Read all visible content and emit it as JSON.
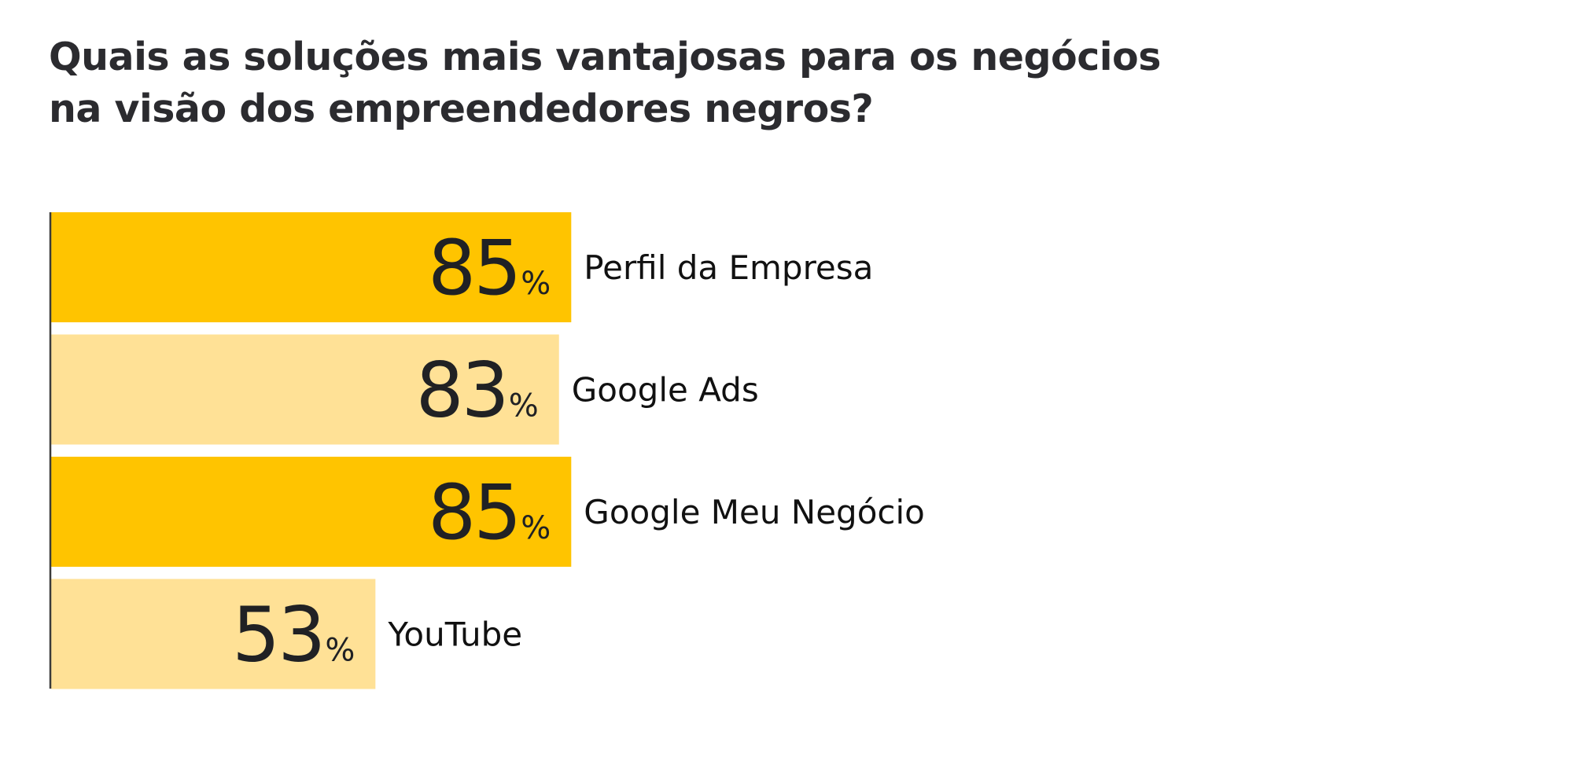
{
  "chart_data": {
    "type": "bar",
    "orientation": "horizontal",
    "title": "Quais as soluções mais vantajosas para os negócios na visão dos empreendedores negros?",
    "title_lines": [
      "Quais as soluções mais vantajosas para os negócios",
      "na visão dos empreendedores negros?"
    ],
    "categories": [
      "Perfil da Empresa",
      "Google Ads",
      "Google Meu Negócio",
      "YouTube"
    ],
    "values": [
      85,
      83,
      85,
      53
    ],
    "value_unit": "%",
    "bar_colors": [
      "#FFC400",
      "#FFE196",
      "#FFC400",
      "#FFE196"
    ],
    "xlim": [
      0,
      100
    ],
    "grid": false,
    "legend": "none"
  }
}
